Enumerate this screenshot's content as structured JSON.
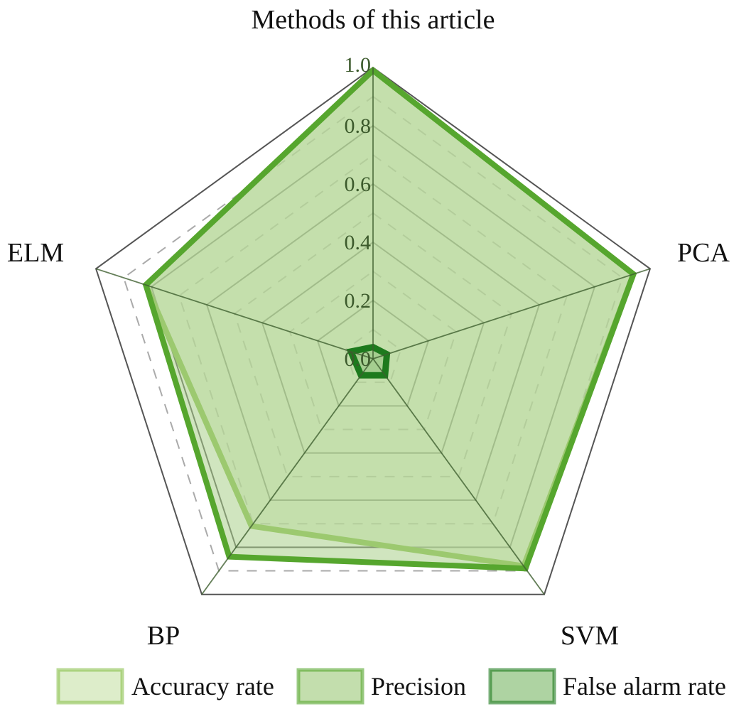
{
  "chart_data": {
    "type": "radar",
    "axes": [
      "Methods of this article",
      "PCA",
      "SVM",
      "BP",
      "ELM"
    ],
    "rlim": [
      0,
      1.0
    ],
    "tick_labels": [
      "0.0",
      "0.2",
      "0.4",
      "0.6",
      "0.8",
      "1.0"
    ],
    "ticks": [
      0,
      0.2,
      0.4,
      0.6,
      0.8,
      1.0
    ],
    "grid": true,
    "legend_position": "bottom",
    "series": [
      {
        "name": "Accuracy rate",
        "values": [
          0.99,
          0.94,
          0.88,
          0.71,
          0.82
        ],
        "stroke": "#8cc24e",
        "fill": "#cfe5b4"
      },
      {
        "name": "Precision",
        "values": [
          0.99,
          0.94,
          0.89,
          0.84,
          0.82
        ],
        "stroke": "#56a62e",
        "fill": "#a9d08a"
      },
      {
        "name": "False alarm rate",
        "values": [
          0.04,
          0.05,
          0.07,
          0.07,
          0.08
        ],
        "stroke": "#1d7a1d",
        "fill": "#8cc07a"
      }
    ]
  }
}
